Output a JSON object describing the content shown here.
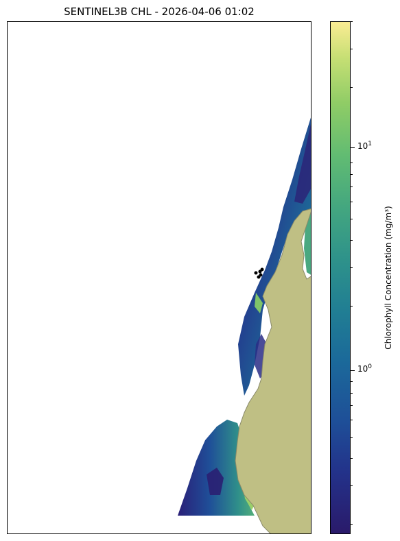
{
  "title": "SENTINEL3B CHL - 2026-04-06 01:02",
  "colorbar": {
    "label": "Chlorophyll Concentration (mg/m³)",
    "scale": "log",
    "range": [
      0.18,
      40
    ],
    "major_ticks": [
      {
        "label_base": "10",
        "label_exp": "1",
        "value": 10
      },
      {
        "label_base": "10",
        "label_exp": "0",
        "value": 1
      }
    ],
    "colors": [
      "#2a1a6a",
      "#23328a",
      "#1e4f98",
      "#1b6a9a",
      "#217f93",
      "#2f938a",
      "#44a77f",
      "#62bc72",
      "#8fcc66",
      "#c6df74",
      "#fbec93"
    ]
  },
  "map": {
    "land_color": "#bfbf84",
    "coast_color": "#8a8a6a",
    "marker_color": "#000000"
  }
}
